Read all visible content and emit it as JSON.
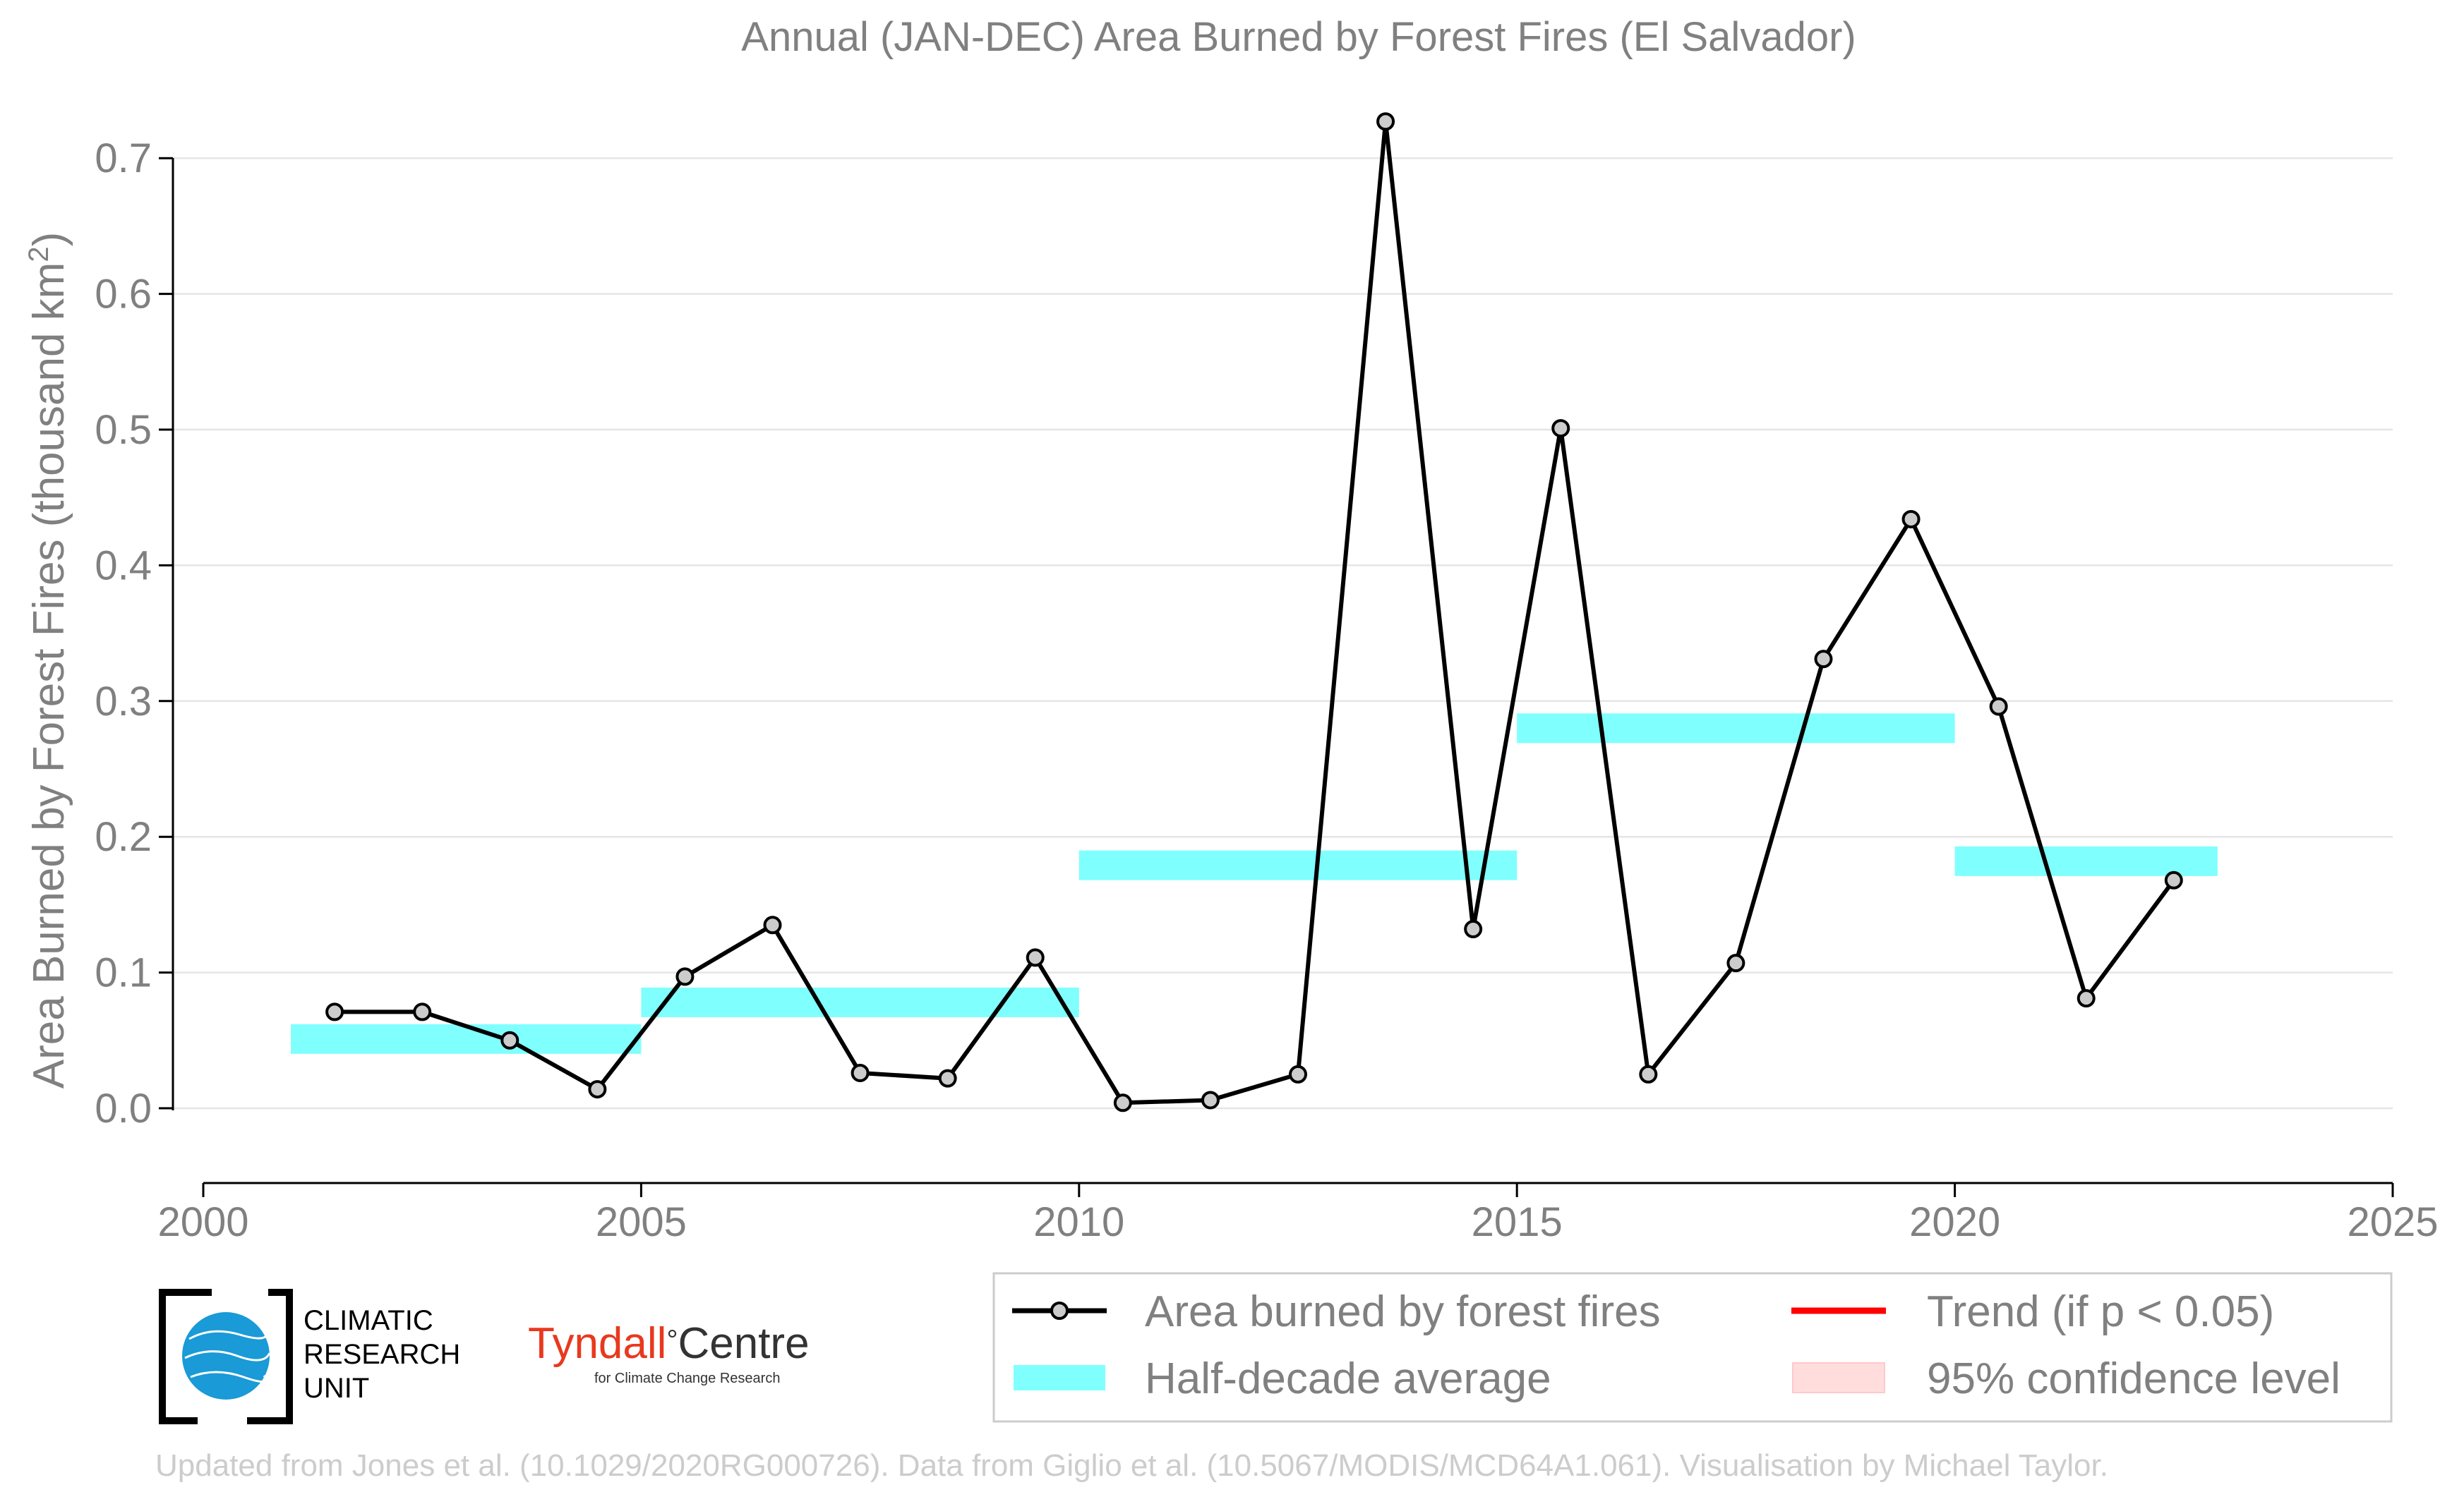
{
  "chart_data": {
    "type": "line",
    "title": "Annual (JAN-DEC) Area Burned by Forest Fires (El Salvador)",
    "xlabel": "",
    "ylabel": "Area Burned by Forest Fires (thousand km",
    "ylabel_superscript": "2",
    "ylabel_close": ")",
    "xlim": [
      2000,
      2025
    ],
    "ylim": [
      -0.05,
      0.74
    ],
    "xticks": [
      2000,
      2005,
      2010,
      2015,
      2020,
      2025
    ],
    "yticks": [
      0.0,
      0.1,
      0.2,
      0.3,
      0.4,
      0.5,
      0.6,
      0.7
    ],
    "ytick_labels": [
      "0.0",
      "0.1",
      "0.2",
      "0.3",
      "0.4",
      "0.5",
      "0.6",
      "0.7"
    ],
    "grid": true,
    "series": [
      {
        "name": "Area burned by forest fires",
        "x": [
          2001.5,
          2002.5,
          2003.5,
          2004.5,
          2005.5,
          2006.5,
          2007.5,
          2008.5,
          2009.5,
          2010.5,
          2011.5,
          2012.5,
          2013.5,
          2014.5,
          2015.5,
          2016.5,
          2017.5,
          2018.5,
          2019.5,
          2020.5,
          2021.5,
          2022.5
        ],
        "values": [
          0.071,
          0.071,
          0.05,
          0.014,
          0.097,
          0.135,
          0.026,
          0.022,
          0.111,
          0.004,
          0.006,
          0.025,
          0.727,
          0.132,
          0.501,
          0.025,
          0.107,
          0.331,
          0.434,
          0.296,
          0.081,
          0.168
        ]
      }
    ],
    "half_decade_averages": [
      {
        "x_start": 2001,
        "x_end": 2005,
        "value": 0.051
      },
      {
        "x_start": 2005,
        "x_end": 2010,
        "value": 0.078
      },
      {
        "x_start": 2010,
        "x_end": 2015,
        "value": 0.179
      },
      {
        "x_start": 2015,
        "x_end": 2020,
        "value": 0.28
      },
      {
        "x_start": 2020,
        "x_end": 2023,
        "value": 0.182
      }
    ],
    "legend": {
      "placement": "bottom-right",
      "items": [
        {
          "label": "Area burned by forest fires",
          "kind": "line-marker"
        },
        {
          "label": "Trend (if p < 0.05)",
          "kind": "line-red"
        },
        {
          "label": "Half-decade average",
          "kind": "band-cyan"
        },
        {
          "label": "95% confidence level",
          "kind": "band-pink"
        }
      ]
    },
    "colors": {
      "line": "#000000",
      "marker_fill": "#cccccc",
      "band": "#80ffff",
      "trend": "#ff0000",
      "confidence": "#ffdddd",
      "text": "#808080",
      "grid": "#e5e5e5"
    }
  },
  "logos": {
    "cru_lines": [
      "CLIMATIC",
      "RESEARCH",
      "UNIT"
    ],
    "tyndall_main": "Tyndall",
    "tyndall_degree": "°",
    "tyndall_centre": "Centre",
    "tyndall_sub": "for Climate Change Research"
  },
  "footer": "Updated from Jones et al. (10.1029/2020RG000726). Data from Giglio et al. (10.5067/MODIS/MCD64A1.061). Visualisation by Michael Taylor."
}
